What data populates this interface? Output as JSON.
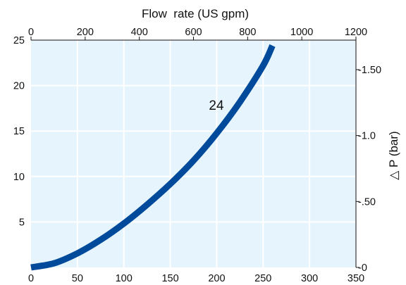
{
  "chart_data": {
    "type": "line",
    "top_axis": {
      "label": "Flow  rate (US gpm)",
      "ticks": [
        0,
        200,
        400,
        600,
        800,
        1000,
        1200
      ],
      "range": [
        0,
        1200
      ]
    },
    "bottom_axis": {
      "label": "",
      "ticks": [
        0,
        50,
        100,
        150,
        200,
        250,
        300,
        350
      ],
      "range": [
        0,
        350
      ]
    },
    "left_axis": {
      "label": "",
      "ticks": [
        5,
        10,
        15,
        20,
        25
      ],
      "range": [
        0,
        25
      ]
    },
    "right_axis": {
      "label": "△ P (bar)",
      "ticks": [
        {
          "label": "-0",
          "value": 0
        },
        {
          "label": "-.50",
          "value": 0.5
        },
        {
          "label": "-1.0",
          "value": 1.0
        },
        {
          "label": "-1.50",
          "value": 1.5
        }
      ],
      "range": [
        0,
        1.724
      ]
    },
    "grid": true,
    "series": [
      {
        "name": "24",
        "color": "#004a9c",
        "x": [
          0,
          25,
          50,
          75,
          100,
          125,
          150,
          175,
          200,
          225,
          250,
          260
        ],
        "y": [
          0,
          0.46,
          1.55,
          3.04,
          4.83,
          6.9,
          9.18,
          11.75,
          14.75,
          18.2,
          22.2,
          24.4
        ]
      }
    ]
  }
}
